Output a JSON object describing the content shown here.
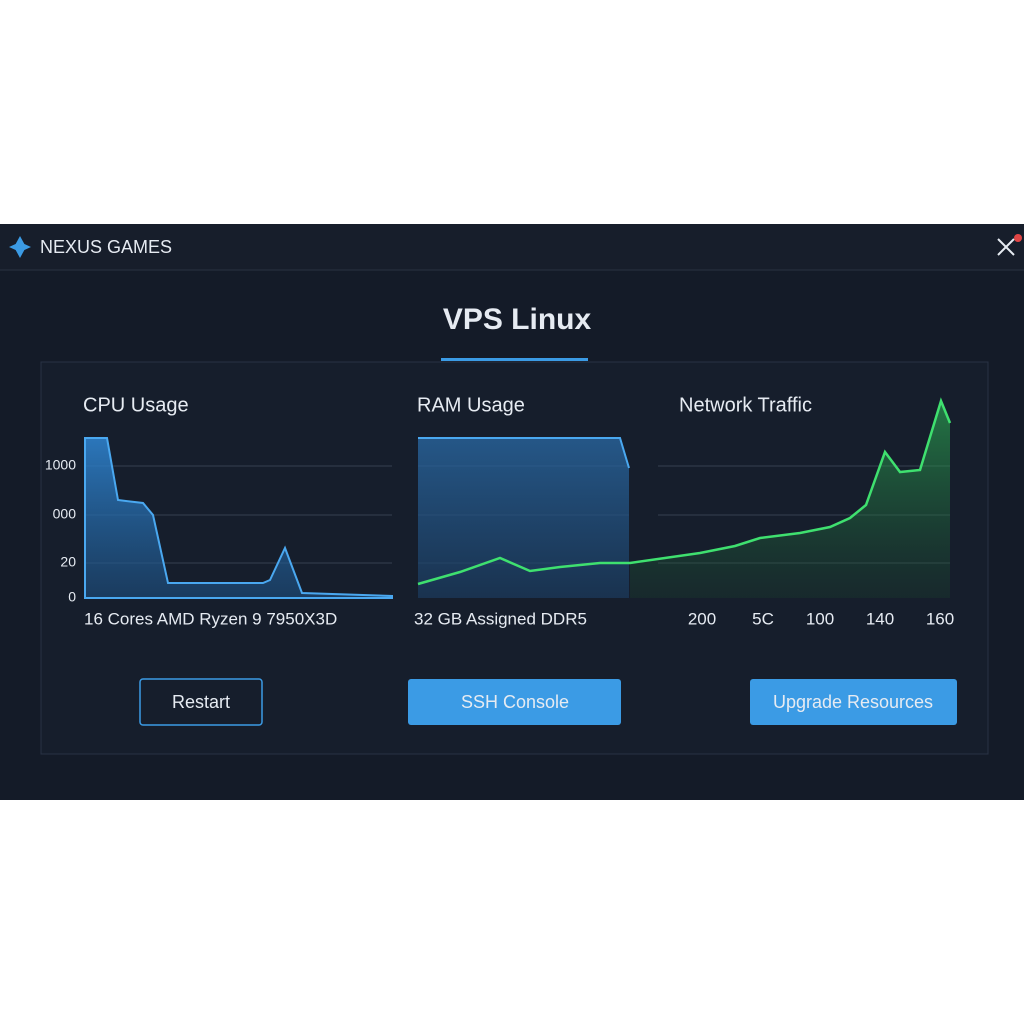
{
  "header": {
    "brand": "NEXUS GAMES"
  },
  "title": "VPS Linux",
  "panels": [
    {
      "title": "CPU Usage",
      "caption": "16 Cores AMD Ryzen 9 7950X3D"
    },
    {
      "title": "RAM Usage",
      "caption": "32 GB Assigned DDR5"
    },
    {
      "title": "Network Traffic",
      "x_labels": [
        "200",
        "5C",
        "100",
        "140",
        "160"
      ]
    }
  ],
  "y_labels": [
    "1000",
    "000",
    "20",
    "0"
  ],
  "buttons": [
    "Restart",
    "SSH Console",
    "Upgrade Resources"
  ]
}
